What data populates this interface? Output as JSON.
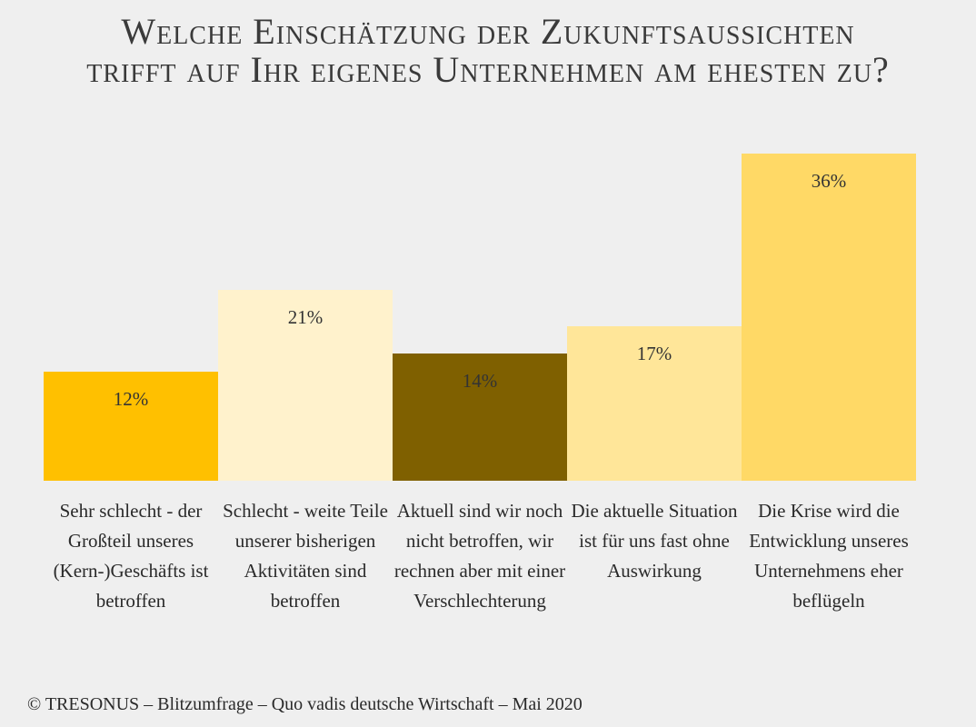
{
  "chart_data": {
    "type": "bar",
    "title_lines": [
      "Welche Einschätzung der Zukunftsaussichten",
      "trifft auf Ihr eigenes Unternehmen am ehesten zu?"
    ],
    "categories": [
      "Sehr schlecht - der Großteil unseres (Kern-)Geschäfts ist betroffen",
      "Schlecht - weite Teile unserer bisherigen Aktivitäten sind betroffen",
      "Aktuell sind wir noch nicht betroffen, wir rechnen aber mit einer Verschlechterung",
      "Die aktuelle Situation ist für uns fast ohne Auswirkung",
      "Die Krise wird die Entwicklung unseres Unternehmens eher beflügeln"
    ],
    "values": [
      12,
      21,
      14,
      17,
      36
    ],
    "data_labels": [
      "12%",
      "21%",
      "14%",
      "17%",
      "36%"
    ],
    "colors": [
      "#FFC000",
      "#FFF2CC",
      "#7F6000",
      "#FFE699",
      "#FFD966"
    ],
    "ylim": [
      0,
      36
    ],
    "grid": false,
    "legend": "none"
  },
  "footer": "© TRESONUS – Blitzumfrage – Quo vadis deutsche Wirtschaft – Mai 2020"
}
